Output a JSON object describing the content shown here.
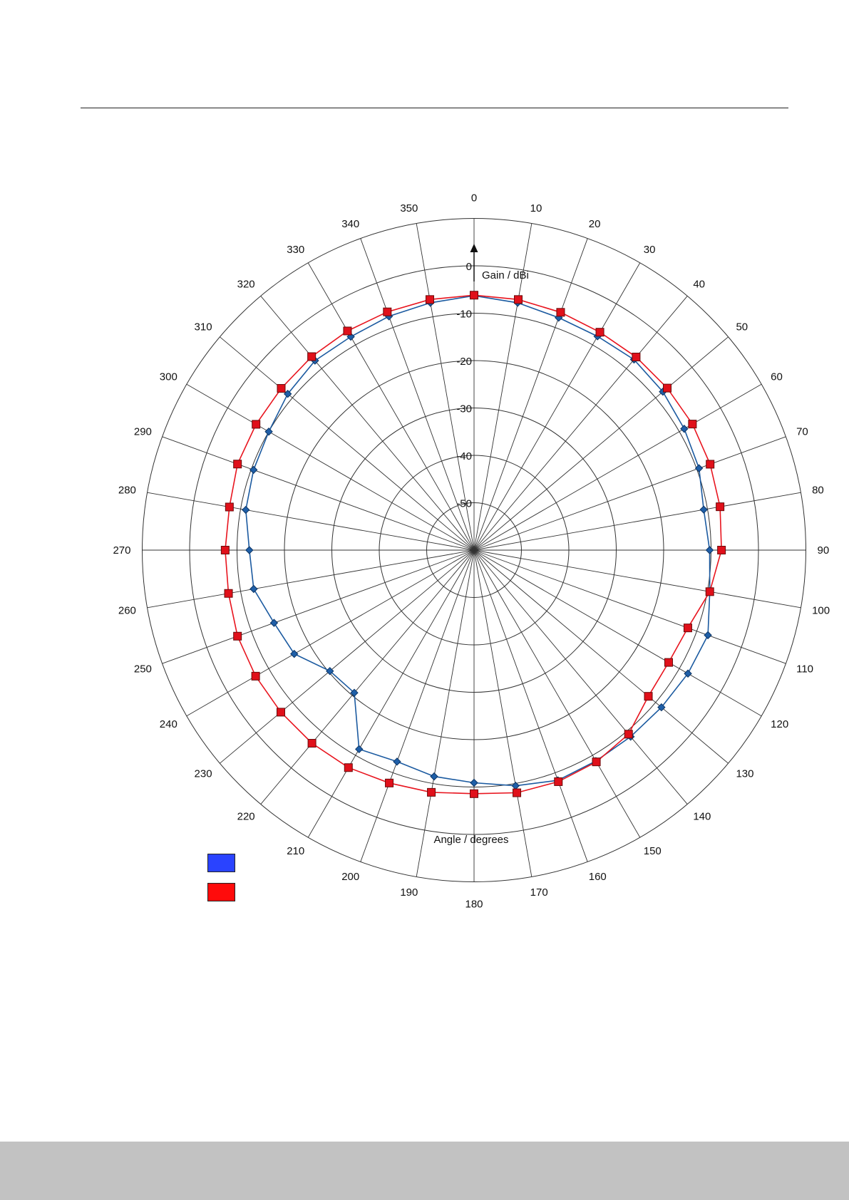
{
  "chart_data": {
    "type": "polar-line",
    "angle_axis": {
      "label": "Angle / degrees",
      "tick_labels": [
        "0",
        "10",
        "20",
        "30",
        "40",
        "50",
        "60",
        "70",
        "80",
        "90",
        "100",
        "110",
        "120",
        "130",
        "140",
        "150",
        "160",
        "170",
        "180",
        "190",
        "200",
        "210",
        "220",
        "230",
        "240",
        "250",
        "260",
        "270",
        "280",
        "290",
        "300",
        "310",
        "320",
        "330",
        "340",
        "350"
      ]
    },
    "radial_axis": {
      "label": "Gain / dBi",
      "range": [
        -50,
        0
      ],
      "tick_labels": [
        "0",
        "-10",
        "-20",
        "-30",
        "-40",
        "-50"
      ],
      "extra_ring": true
    },
    "grid": true,
    "angles": [
      0,
      10,
      20,
      30,
      40,
      50,
      60,
      70,
      80,
      90,
      100,
      110,
      120,
      130,
      140,
      150,
      160,
      170,
      180,
      190,
      200,
      210,
      220,
      230,
      240,
      250,
      260,
      270,
      280,
      290,
      300,
      310,
      320,
      330,
      340,
      350
    ],
    "series": [
      {
        "color": "#1b5aa0",
        "marker": "diamond",
        "values": [
          -6.3,
          -7.0,
          -7.8,
          -7.9,
          -7.5,
          -8.0,
          -8.8,
          -9.5,
          -10.8,
          -10.3,
          -9.5,
          -7.5,
          -7.9,
          -8.4,
          -8.6,
          -8.6,
          -8.3,
          -9.5,
          -10.9,
          -11.5,
          -12.5,
          -11.5,
          -20.7,
          -20.3,
          -16.2,
          -15.1,
          -12.8,
          -12.6,
          -11.1,
          -10.5,
          -10.0,
          -8.7,
          -7.8,
          -8.0,
          -7.5,
          -7.0
        ]
      },
      {
        "color": "#e8141e",
        "marker": "square",
        "values": [
          -6.2,
          -6.3,
          -6.6,
          -6.9,
          -6.8,
          -6.8,
          -6.8,
          -7.0,
          -7.3,
          -7.8,
          -9.5,
          -12.0,
          -12.6,
          -12.0,
          -9.3,
          -8.4,
          -8.0,
          -8.0,
          -8.6,
          -8.1,
          -7.7,
          -7.0,
          -6.8,
          -6.8,
          -6.8,
          -6.9,
          -7.4,
          -7.5,
          -7.6,
          -6.9,
          -6.9,
          -6.9,
          -6.7,
          -6.6,
          -6.5,
          -6.3
        ]
      }
    ],
    "legend": {
      "position": "bottom-left",
      "entries": [
        {
          "color": "#2a43ff",
          "label": ""
        },
        {
          "color": "#ff0b0b",
          "label": ""
        }
      ]
    }
  },
  "legend_colors": {
    "blue": "#2a43ff",
    "red": "#ff0b0b"
  }
}
